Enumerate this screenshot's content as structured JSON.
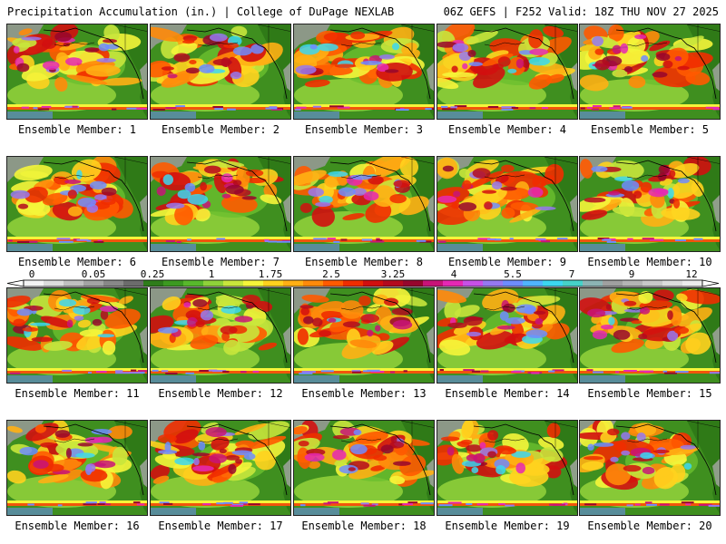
{
  "header": {
    "left": "Precipitation Accumulation (in.) | College of DuPage NEXLAB",
    "right": "06Z GEFS | F252 Valid: 18Z THU NOV 27 2025"
  },
  "members": [
    {
      "label": "Ensemble Member: 1"
    },
    {
      "label": "Ensemble Member: 2"
    },
    {
      "label": "Ensemble Member: 3"
    },
    {
      "label": "Ensemble Member: 4"
    },
    {
      "label": "Ensemble Member: 5"
    },
    {
      "label": "Ensemble Member: 6"
    },
    {
      "label": "Ensemble Member: 7"
    },
    {
      "label": "Ensemble Member: 8"
    },
    {
      "label": "Ensemble Member: 9"
    },
    {
      "label": "Ensemble Member: 10"
    },
    {
      "label": "Ensemble Member: 11"
    },
    {
      "label": "Ensemble Member: 12"
    },
    {
      "label": "Ensemble Member: 13"
    },
    {
      "label": "Ensemble Member: 14"
    },
    {
      "label": "Ensemble Member: 15"
    },
    {
      "label": "Ensemble Member: 16"
    },
    {
      "label": "Ensemble Member: 17"
    },
    {
      "label": "Ensemble Member: 18"
    },
    {
      "label": "Ensemble Member: 19"
    },
    {
      "label": "Ensemble Member: 20"
    }
  ],
  "colorbar": {
    "labels": [
      "0",
      "0.05",
      "0.25",
      "1",
      "1.75",
      "2.5",
      "3.25",
      "4",
      "5.5",
      "7",
      "9",
      "12"
    ],
    "colors": [
      "#f4f4f4",
      "#dcdcdc",
      "#c0c0c0",
      "#a4a4a4",
      "#888888",
      "#6c6c6c",
      "#2e7d1a",
      "#3c9a20",
      "#58b82c",
      "#8fd23a",
      "#c8e63c",
      "#f5f53a",
      "#ffd21e",
      "#ffb014",
      "#ff8a0a",
      "#ff5a00",
      "#f02d00",
      "#d20f0f",
      "#b40a1e",
      "#96062d",
      "#c81478",
      "#e628b4",
      "#c850e6",
      "#9678f0",
      "#6e8cff",
      "#50b4ff",
      "#3cd7f0",
      "#46d2c8",
      "#8cb4b4",
      "#a0a0a0",
      "#b4b4b4",
      "#c8c8c8",
      "#dcdcdc",
      "#ececec"
    ]
  },
  "colors": {
    "land": "#3f8f1f",
    "ocean_light": "#8fcf3a",
    "coast": "#000000"
  }
}
